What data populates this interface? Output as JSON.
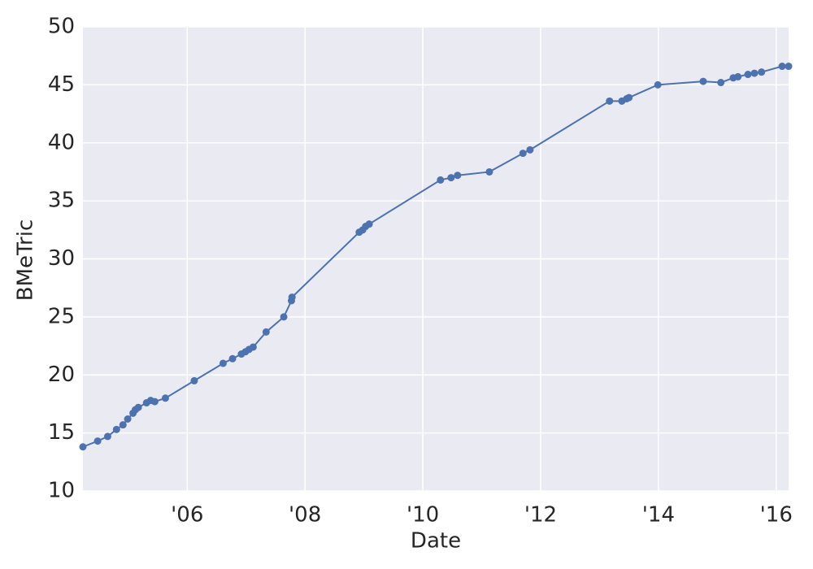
{
  "chart_data": {
    "type": "line",
    "xlabel": "Date",
    "ylabel": "BMeTric",
    "x": [
      2004.23,
      2004.48,
      2004.65,
      2004.8,
      2004.91,
      2004.99,
      2005.08,
      2005.12,
      2005.17,
      2005.31,
      2005.38,
      2005.45,
      2005.63,
      2006.12,
      2006.61,
      2006.77,
      2006.92,
      2006.99,
      2007.05,
      2007.12,
      2007.34,
      2007.64,
      2007.77,
      2007.78,
      2008.92,
      2008.98,
      2009.03,
      2009.09,
      2010.3,
      2010.48,
      2010.59,
      2011.13,
      2011.7,
      2011.82,
      2013.17,
      2013.38,
      2013.46,
      2013.5,
      2013.99,
      2014.76,
      2015.06,
      2015.27,
      2015.35,
      2015.52,
      2015.63,
      2015.75,
      2016.1,
      2016.21
    ],
    "series": [
      {
        "color": "#4c72b0",
        "values": [
          13.8,
          14.3,
          14.7,
          15.3,
          15.7,
          16.2,
          16.7,
          17.0,
          17.2,
          17.6,
          17.8,
          17.7,
          18.0,
          19.5,
          21.0,
          21.4,
          21.8,
          22.0,
          22.2,
          22.4,
          23.7,
          25.0,
          26.4,
          26.7,
          32.3,
          32.5,
          32.8,
          33.0,
          36.8,
          37.0,
          37.2,
          37.5,
          39.1,
          39.4,
          43.6,
          43.6,
          43.8,
          43.9,
          45.0,
          45.3,
          45.2,
          45.6,
          45.7,
          45.9,
          46.0,
          46.1,
          46.6,
          46.6
        ]
      }
    ],
    "xlim": [
      2004.23,
      2016.21
    ],
    "xticks": [
      {
        "value": 2006,
        "label": "'06"
      },
      {
        "value": 2008,
        "label": "'08"
      },
      {
        "value": 2010,
        "label": "'10"
      },
      {
        "value": 2012,
        "label": "'12"
      },
      {
        "value": 2014,
        "label": "'14"
      },
      {
        "value": 2016,
        "label": "'16"
      }
    ],
    "ylim": [
      10,
      50
    ],
    "yticks": [
      10,
      15,
      20,
      25,
      30,
      35,
      40,
      45,
      50
    ],
    "grid": true,
    "background": "#eaeaf2"
  }
}
